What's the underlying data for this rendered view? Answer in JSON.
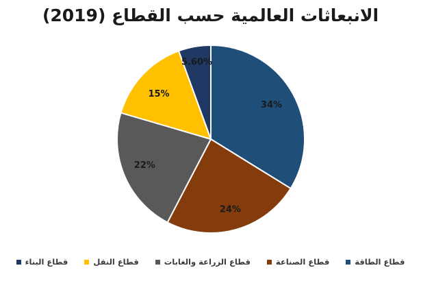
{
  "chart_data": {
    "type": "pie",
    "title": "الانبعاثات العالمية حسب القطاع (2019)",
    "slices": [
      {
        "name": "قطاع الطاقة",
        "value": 34,
        "label": "34%",
        "color": "#1f4e79"
      },
      {
        "name": "قطاع الصناعة",
        "value": 24,
        "label": "24%",
        "color": "#843c0c"
      },
      {
        "name": "قطاع الزراعة والغابات",
        "value": 22,
        "label": "22%",
        "color": "#595959"
      },
      {
        "name": "قطاع النقل",
        "value": 15,
        "label": "15%",
        "color": "#ffc000"
      },
      {
        "name": "قطاع البناء",
        "value": 5.6,
        "label": "5.60%",
        "color": "#1f3864"
      }
    ],
    "legend_position": "bottom",
    "start_angle": "12 o'clock",
    "direction": "clockwise"
  }
}
